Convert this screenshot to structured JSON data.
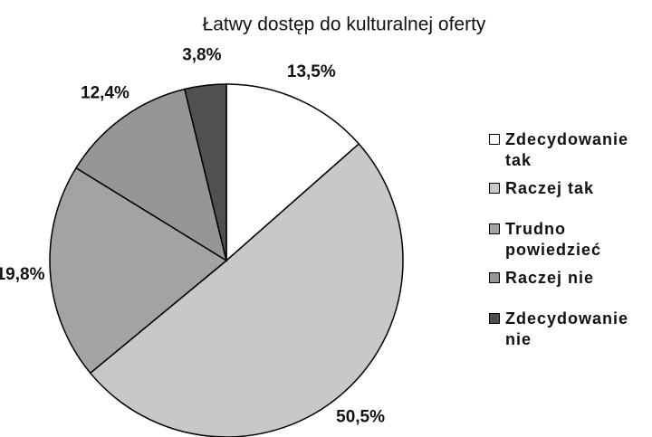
{
  "chart_data": {
    "type": "pie",
    "title": "Łatwy dostęp do kulturalnej oferty",
    "categories": [
      "Zdecydowanie tak",
      "Raczej tak",
      "Trudno powiedzieć",
      "Raczej nie",
      "Zdecydowanie nie"
    ],
    "values": [
      13.5,
      50.5,
      19.8,
      12.4,
      3.8
    ],
    "value_labels": [
      "13,5%",
      "50,5%",
      "19,8%",
      "12,4%",
      "3,8%"
    ],
    "colors": [
      "#ffffff",
      "#c8c8c8",
      "#a3a3a3",
      "#969696",
      "#505050"
    ],
    "legend": "right"
  }
}
